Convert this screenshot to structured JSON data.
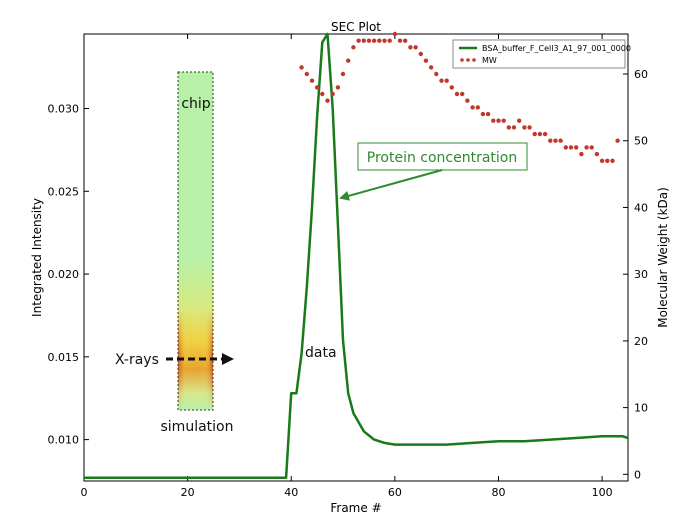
{
  "chart_data": {
    "type": "line",
    "title": "SEC Plot",
    "xlabel": "Frame #",
    "ylabel_left": "Integrated Intensity",
    "ylabel_right": "Molecular Weight (kDa)",
    "xlim": [
      0,
      105
    ],
    "ylim_left": [
      0.0075,
      0.0345
    ],
    "ylim_right": [
      -1,
      66
    ],
    "x_ticks": [
      0,
      20,
      40,
      60,
      80,
      100
    ],
    "y_left_ticks": [
      0.01,
      0.015,
      0.02,
      0.025,
      0.03
    ],
    "y_right_ticks": [
      0,
      10,
      20,
      30,
      40,
      50,
      60
    ],
    "legend_position": "top-right",
    "series": [
      {
        "name": "BSA_buffer_F_Cell3_A1_97_001_0000",
        "axis": "left",
        "style": "line",
        "color": "#1a7a1a",
        "x": [
          0,
          5,
          10,
          15,
          20,
          25,
          30,
          35,
          38,
          39,
          40,
          41,
          42,
          43,
          44,
          45,
          46,
          47,
          48,
          49,
          50,
          51,
          52,
          54,
          56,
          58,
          60,
          62,
          65,
          70,
          75,
          80,
          85,
          90,
          95,
          100,
          104,
          105
        ],
        "y": [
          0.0077,
          0.0077,
          0.0077,
          0.0077,
          0.0077,
          0.0077,
          0.0077,
          0.0077,
          0.0077,
          0.0077,
          0.0128,
          0.0128,
          0.0152,
          0.0192,
          0.024,
          0.0295,
          0.034,
          0.0345,
          0.03,
          0.023,
          0.016,
          0.0128,
          0.0116,
          0.0105,
          0.01,
          0.0098,
          0.0097,
          0.0097,
          0.0097,
          0.0097,
          0.0098,
          0.0099,
          0.0099,
          0.01,
          0.0101,
          0.0102,
          0.0102,
          0.0101
        ]
      },
      {
        "name": "MW",
        "axis": "right",
        "style": "dots",
        "color": "#c0392b",
        "x": [
          42,
          43,
          44,
          45,
          46,
          47,
          48,
          49,
          50,
          51,
          52,
          53,
          54,
          55,
          56,
          57,
          58,
          59,
          60,
          61,
          62,
          63,
          64,
          65,
          66,
          67,
          68,
          69,
          70,
          71,
          72,
          73,
          74,
          75,
          76,
          77,
          78,
          79,
          80,
          81,
          82,
          83,
          84,
          85,
          86,
          87,
          88,
          89,
          90,
          91,
          92,
          93,
          94,
          95,
          96,
          97,
          98,
          99,
          100,
          101,
          102,
          103
        ],
        "y": [
          61,
          60,
          59,
          58,
          57,
          56,
          57,
          58,
          60,
          62,
          64,
          65,
          65,
          65,
          65,
          65,
          65,
          65,
          66,
          65,
          65,
          64,
          64,
          63,
          62,
          61,
          60,
          59,
          59,
          58,
          57,
          57,
          56,
          55,
          55,
          54,
          54,
          53,
          53,
          53,
          52,
          52,
          53,
          52,
          52,
          51,
          51,
          51,
          50,
          50,
          50,
          49,
          49,
          49,
          48,
          49,
          49,
          48,
          47,
          47,
          47,
          50
        ]
      }
    ],
    "annotations": [
      {
        "name": "protein-concentration-label",
        "text": "Protein concentration",
        "color": "#2e8b2e"
      },
      {
        "name": "data-label",
        "text": "data"
      },
      {
        "name": "chip-label",
        "text": "chip"
      },
      {
        "name": "xrays-label",
        "text": "X-rays"
      },
      {
        "name": "simulation-label",
        "text": "simulation"
      }
    ]
  }
}
